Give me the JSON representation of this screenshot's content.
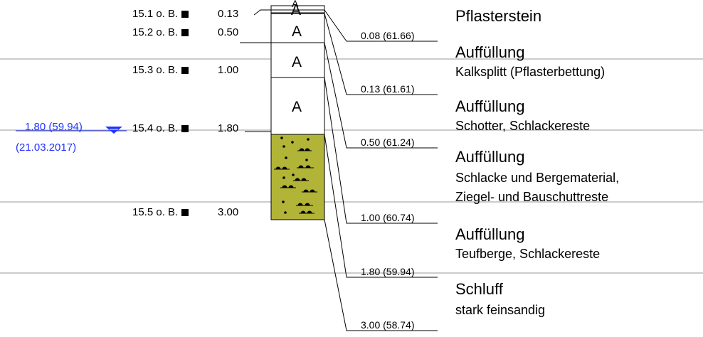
{
  "colors": {
    "line": "#999999",
    "fill_schluff": "#b1b436",
    "groundwater": "#2233ff"
  },
  "samples": [
    {
      "label": "15.1 o. B.",
      "depth": "0.13"
    },
    {
      "label": "15.2 o. B.",
      "depth": "0.50"
    },
    {
      "label": "15.3 o. B.",
      "depth": "1.00"
    },
    {
      "label": "15.4 o. B.",
      "depth": "1.80"
    },
    {
      "label": "15.5 o. B.",
      "depth": "3.00"
    }
  ],
  "groundwater": {
    "level": "1.80 (59.94)",
    "date": "(21.03.2017)"
  },
  "column_symbols": [
    "A",
    "A",
    "A",
    "A",
    "A"
  ],
  "elevations": [
    "0.08 (61.66)",
    "0.13 (61.61)",
    "0.50 (61.24)",
    "1.00 (60.74)",
    "1.80 (59.94)",
    "3.00 (58.74)"
  ],
  "layers": [
    {
      "main": "Pflasterstein",
      "sub": ""
    },
    {
      "main": "Auffüllung",
      "sub": "Kalksplitt (Pflasterbettung)"
    },
    {
      "main": "Auffüllung",
      "sub": "Schotter, Schlackereste"
    },
    {
      "main": "Auffüllung",
      "sub1": "Schlacke und Bergematerial,",
      "sub2": "Ziegel- und Bauschuttreste"
    },
    {
      "main": "Auffüllung",
      "sub": "Teufberge, Schlackereste"
    },
    {
      "main": "Schluff",
      "sub": "stark feinsandig"
    }
  ]
}
